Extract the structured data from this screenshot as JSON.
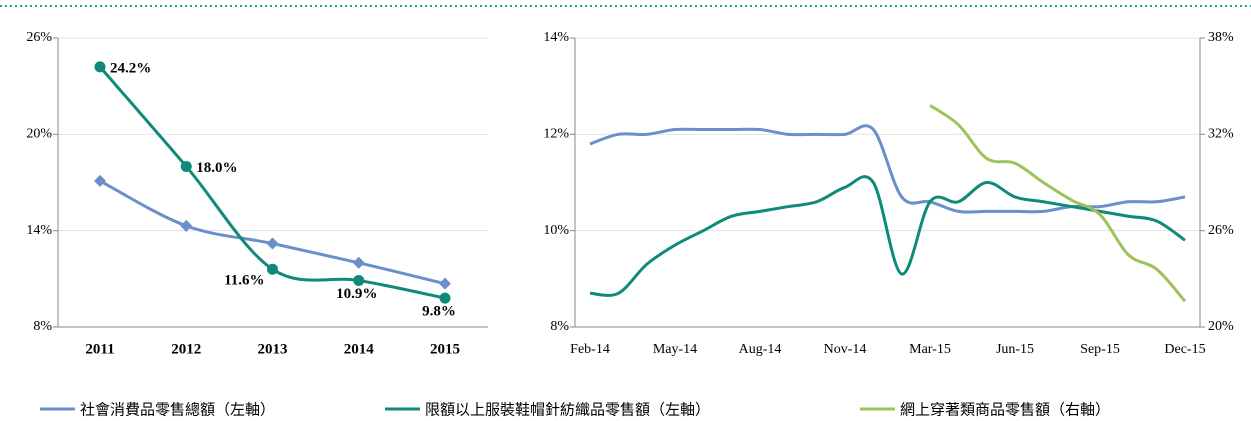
{
  "chart_data": [
    {
      "type": "line",
      "categories": [
        "2011",
        "2012",
        "2013",
        "2014",
        "2015"
      ],
      "ylim": [
        8,
        26
      ],
      "yticks": [
        {
          "value": 8,
          "label": "8%"
        },
        {
          "value": 14,
          "label": "14%"
        },
        {
          "value": 20,
          "label": "20%"
        },
        {
          "value": 26,
          "label": "26%"
        }
      ],
      "grid": true,
      "series": [
        {
          "color": "#6a8fcb",
          "marker": "diamond",
          "values": [
            17.1,
            14.3,
            13.2,
            12.0,
            10.7
          ]
        },
        {
          "color": "#0f8a7a",
          "marker": "circle",
          "values": [
            24.2,
            18.0,
            11.6,
            10.9,
            9.8
          ],
          "value_labels": [
            "24.2%",
            "18.0%",
            "11.6%",
            "10.9%",
            "9.8%"
          ]
        }
      ]
    },
    {
      "type": "line",
      "categories": [
        "Feb-14",
        null,
        null,
        "May-14",
        null,
        null,
        "Aug-14",
        null,
        null,
        "Nov-14",
        null,
        null,
        "Mar-15",
        null,
        null,
        "Jun-15",
        null,
        null,
        "Sep-15",
        null,
        null,
        "Dec-15"
      ],
      "ylim": [
        8,
        14
      ],
      "yticks": [
        {
          "value": 8,
          "label": "8%"
        },
        {
          "value": 10,
          "label": "10%"
        },
        {
          "value": 12,
          "label": "12%"
        },
        {
          "value": 14,
          "label": "14%"
        }
      ],
      "y2lim": [
        20,
        38
      ],
      "y2ticks": [
        {
          "value": 20,
          "label": "20%"
        },
        {
          "value": 26,
          "label": "26%"
        },
        {
          "value": 32,
          "label": "32%"
        },
        {
          "value": 38,
          "label": "38%"
        }
      ],
      "grid": true,
      "legend": "bottom",
      "series": [
        {
          "name": "社會消費品零售總額（左軸）",
          "color": "#6a8fcb",
          "values": [
            11.8,
            12.0,
            12.0,
            12.1,
            12.1,
            12.1,
            12.1,
            12.0,
            12.0,
            12.0,
            12.1,
            10.7,
            10.6,
            10.4,
            10.4,
            10.4,
            10.4,
            10.5,
            10.5,
            10.6,
            10.6,
            10.7
          ]
        },
        {
          "name": "限額以上服裝鞋帽針紡織品零售額（左軸）",
          "color": "#0f8a7a",
          "values": [
            8.7,
            8.7,
            9.3,
            9.7,
            10.0,
            10.3,
            10.4,
            10.5,
            10.6,
            10.9,
            11.0,
            9.1,
            10.6,
            10.6,
            11.0,
            10.7,
            10.6,
            10.5,
            10.4,
            10.3,
            10.2,
            9.8
          ]
        },
        {
          "name": "網上穿著類商品零售額（右軸）",
          "color": "#9dc35a",
          "axis": "y2",
          "values": [
            null,
            null,
            null,
            null,
            null,
            null,
            null,
            null,
            null,
            null,
            null,
            null,
            33.8,
            32.6,
            30.5,
            30.2,
            29.0,
            27.9,
            27.0,
            24.5,
            23.6,
            21.6
          ]
        }
      ]
    }
  ]
}
